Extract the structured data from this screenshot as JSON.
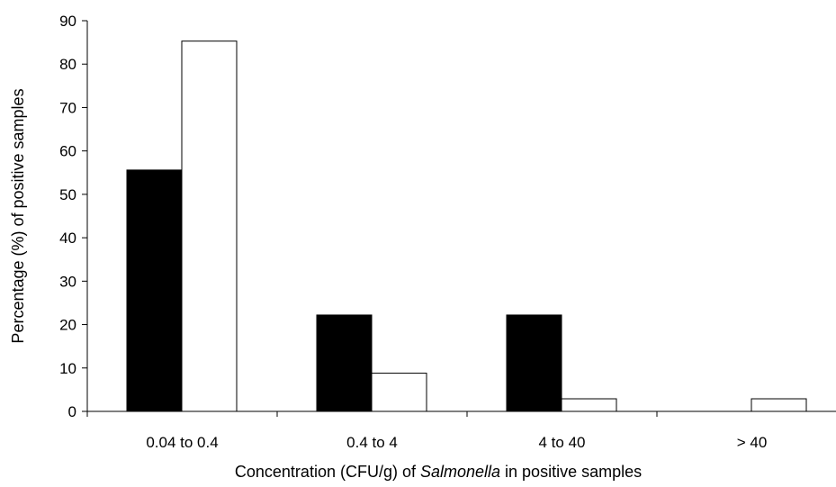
{
  "chart_data": {
    "type": "bar",
    "categories": [
      "0.04 to 0.4",
      "0.4 to 4",
      "4 to 40",
      "> 40"
    ],
    "series": [
      {
        "color": "#000000",
        "values": [
          55.6,
          22.2,
          22.2,
          0
        ]
      },
      {
        "color": "#ffffff",
        "values": [
          85.3,
          8.8,
          2.9,
          2.9
        ]
      }
    ],
    "ylim": [
      0,
      90
    ],
    "yticks": [
      0,
      10,
      20,
      30,
      40,
      50,
      60,
      70,
      80,
      90
    ],
    "ylabel": "Percentage (%) of positive samples",
    "xlabel": {
      "prefix": "Concentration (CFU/g) of ",
      "italic": "Salmonella",
      "suffix": " in positive samples"
    },
    "grid": false,
    "legend": "none"
  }
}
